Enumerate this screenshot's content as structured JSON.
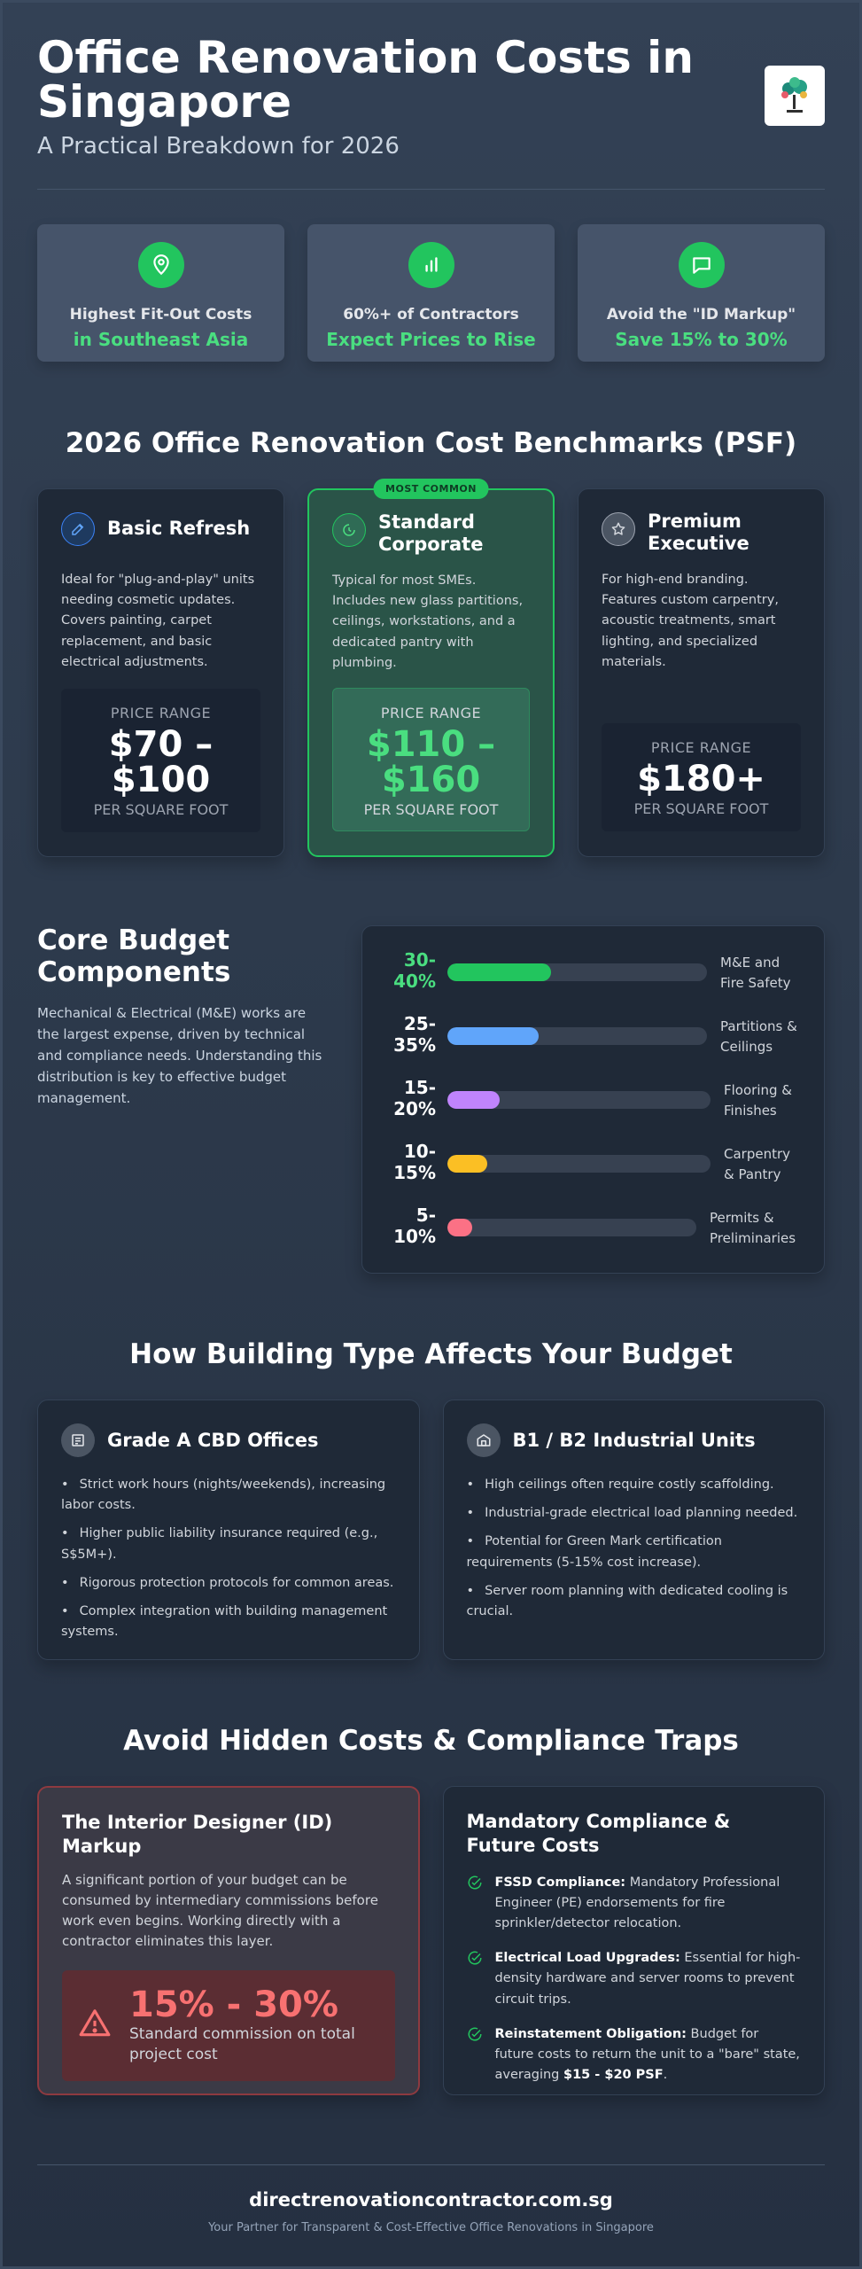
{
  "header": {
    "title": "Office Renovation Costs in Singapore",
    "subtitle": "A Practical Breakdown for 2026",
    "logo_icon": "tree-logo-icon"
  },
  "stats": [
    {
      "icon": "map-pin-icon",
      "line1": "Highest Fit-Out Costs",
      "line2": "in Southeast Asia"
    },
    {
      "icon": "bar-chart-icon",
      "line1": "60%+ of Contractors",
      "line2": "Expect Prices to Rise"
    },
    {
      "icon": "chat-bubble-icon",
      "line1": "Avoid the \"ID Markup\"",
      "line2": "Save 15% to 30%"
    }
  ],
  "benchmarks": {
    "heading": "2026 Office Renovation Cost Benchmarks (PSF)",
    "tiers": [
      {
        "icon": "edit-icon",
        "name": "Basic Refresh",
        "desc": "Ideal for \"plug-and-play\" units needing cosmetic updates. Covers painting, carpet replacement, and basic electrical adjustments.",
        "price_label": "PRICE RANGE",
        "price": "$70 – $100",
        "unit": "PER SQUARE FOOT"
      },
      {
        "icon": "clock-icon",
        "badge": "MOST COMMON",
        "name": "Standard Corporate",
        "desc": "Typical for most SMEs. Includes new glass partitions, ceilings, workstations, and a dedicated pantry with plumbing.",
        "price_label": "PRICE RANGE",
        "price": "$110 – $160",
        "unit": "PER SQUARE FOOT"
      },
      {
        "icon": "star-icon",
        "name": "Premium Executive",
        "desc": "For high-end branding. Features custom carpentry, acoustic treatments, smart lighting, and specialized materials.",
        "price_label": "PRICE RANGE",
        "price": "$180+",
        "unit": "PER SQUARE FOOT"
      }
    ]
  },
  "budget": {
    "title": "Core Budget Components",
    "text": "Mechanical & Electrical (M&E) works are the largest expense, driven by technical and compliance needs. Understanding this distribution is key to effective budget management.",
    "components": [
      {
        "pct_line1": "30-",
        "pct_line2": "40%",
        "label_line1": "M&E and",
        "label_line2": "Fire Safety",
        "fill": 0.4,
        "color": "#22c55e"
      },
      {
        "pct_line1": "25-",
        "pct_line2": "35%",
        "label_line1": "Partitions &",
        "label_line2": "Ceilings",
        "fill": 0.35,
        "color": "#60a5fa"
      },
      {
        "pct_line1": "15-",
        "pct_line2": "20%",
        "label_line1": "Flooring &",
        "label_line2": "Finishes",
        "fill": 0.2,
        "color": "#c084fc"
      },
      {
        "pct_line1": "10-",
        "pct_line2": "15%",
        "label_line1": "Carpentry",
        "label_line2": "& Pantry",
        "fill": 0.15,
        "color": "#fbbf24"
      },
      {
        "pct_line1": "5-",
        "pct_line2": "10%",
        "label_line1": "Permits &",
        "label_line2": "Preliminaries",
        "fill": 0.1,
        "color": "#fb7185"
      }
    ]
  },
  "building": {
    "heading": "How Building Type Affects Your Budget",
    "cards": [
      {
        "icon": "office-building-icon",
        "name": "Grade A CBD Offices",
        "items": [
          "Strict work hours (nights/weekends), increasing labor costs.",
          "Higher public liability insurance required (e.g., S$5M+).",
          "Rigorous protection protocols for common areas.",
          "Complex integration with building management systems."
        ]
      },
      {
        "icon": "warehouse-icon",
        "name": "B1 / B2 Industrial Units",
        "items": [
          "High ceilings often require costly scaffolding.",
          "Industrial-grade electrical load planning needed.",
          "Potential for Green Mark certification requirements (5-15% cost increase).",
          "Server room planning with dedicated cooling is crucial."
        ]
      }
    ]
  },
  "hidden": {
    "heading": "Avoid Hidden Costs & Compliance Traps",
    "markup_card": {
      "title": "The Interior Designer (ID) Markup",
      "text": "A significant portion of your budget can be consumed by intermediary commissions before work even begins. Working directly with a contractor eliminates this layer.",
      "icon": "warning-icon",
      "value": "15% - 30%",
      "caption": "Standard commission on total project cost"
    },
    "compliance_card": {
      "title": "Mandatory Compliance & Future Costs",
      "items": [
        {
          "icon": "check-circle-icon",
          "bold": "FSSD Compliance:",
          "text": " Mandatory Professional Engineer (PE) endorsements for fire sprinkler/detector relocation."
        },
        {
          "icon": "check-circle-icon",
          "bold": "Electrical Load Upgrades:",
          "text": " Essential for high-density hardware and server rooms to prevent circuit trips."
        },
        {
          "icon": "check-circle-icon",
          "bold": "Reinstatement Obligation:",
          "text": " Budget for future costs to return the unit to a \"bare\" state, averaging ",
          "bold2": "$15 - $20 PSF",
          "tail": "."
        }
      ]
    }
  },
  "footer": {
    "site": "directrenovationcontractor.com.sg",
    "tagline": "Your Partner for Transparent & Cost-Effective Office Renovations in Singapore"
  },
  "colors": {
    "accent": "#22c55e",
    "warning": "#f87171",
    "background": "#334155"
  }
}
